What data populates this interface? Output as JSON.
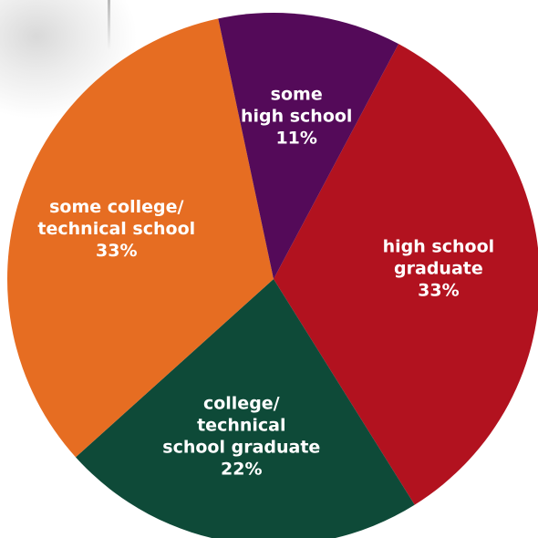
{
  "chart_data": {
    "type": "pie",
    "slices": [
      {
        "label_lines": [
          "high school",
          "graduate"
        ],
        "value": 33,
        "percent_label": "33%",
        "color": "#b2121f"
      },
      {
        "label_lines": [
          "college/",
          "technical",
          "school graduate"
        ],
        "value": 22,
        "percent_label": "22%",
        "color": "#0e4a38"
      },
      {
        "label_lines": [
          "some college/",
          "technical school"
        ],
        "value": 33,
        "percent_label": "33%",
        "color": "#e66d22"
      },
      {
        "label_lines": [
          "some",
          "high school"
        ],
        "value": 11,
        "percent_label": "11%",
        "color": "#540a59"
      }
    ],
    "legend": "none"
  }
}
